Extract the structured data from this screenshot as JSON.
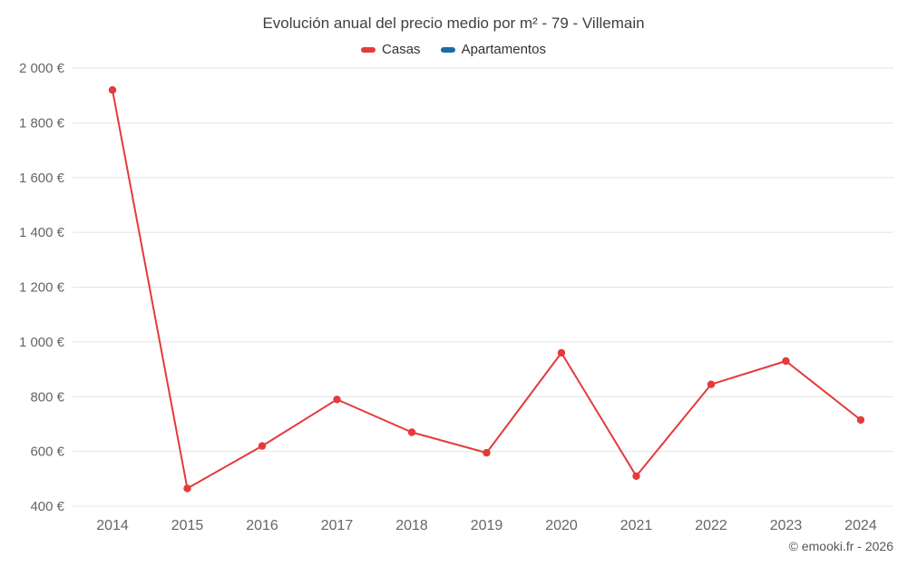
{
  "header": {
    "title": "Evolución anual del precio medio por m² - 79 - Villemain"
  },
  "legend": [
    {
      "label": "Casas",
      "color": "#e43a3a"
    },
    {
      "label": "Apartamentos",
      "color": "#1b6ca8"
    }
  ],
  "footer": {
    "copyright": "© emooki.fr - 2026"
  },
  "colors": {
    "grid": "#e4e4e4",
    "axis_text": "#666666",
    "casas": "#e43a3a",
    "apartamentos": "#1b6ca8"
  },
  "chart_data": {
    "type": "line",
    "title": "Evolución anual del precio medio por m² - 79 - Villemain",
    "xlabel": "",
    "ylabel": "",
    "categories": [
      "2014",
      "2015",
      "2016",
      "2017",
      "2018",
      "2019",
      "2020",
      "2021",
      "2022",
      "2023",
      "2024"
    ],
    "series": [
      {
        "name": "Casas",
        "color": "#e43a3a",
        "values": [
          1920,
          465,
          620,
          790,
          670,
          595,
          960,
          510,
          845,
          930,
          715
        ]
      },
      {
        "name": "Apartamentos",
        "color": "#1b6ca8",
        "values": [
          null,
          null,
          null,
          null,
          null,
          null,
          null,
          null,
          null,
          null,
          null
        ]
      }
    ],
    "ylim": [
      400,
      2000
    ],
    "yticks": [
      {
        "value": 400,
        "label": "400 €"
      },
      {
        "value": 600,
        "label": "600 €"
      },
      {
        "value": 800,
        "label": "800 €"
      },
      {
        "value": 1000,
        "label": "1 000 €"
      },
      {
        "value": 1200,
        "label": "1 200 €"
      },
      {
        "value": 1400,
        "label": "1 400 €"
      },
      {
        "value": 1600,
        "label": "1 600 €"
      },
      {
        "value": 1800,
        "label": "1 800 €"
      },
      {
        "value": 2000,
        "label": "2 000 €"
      }
    ],
    "grid": "horizontal",
    "legend_position": "top"
  }
}
